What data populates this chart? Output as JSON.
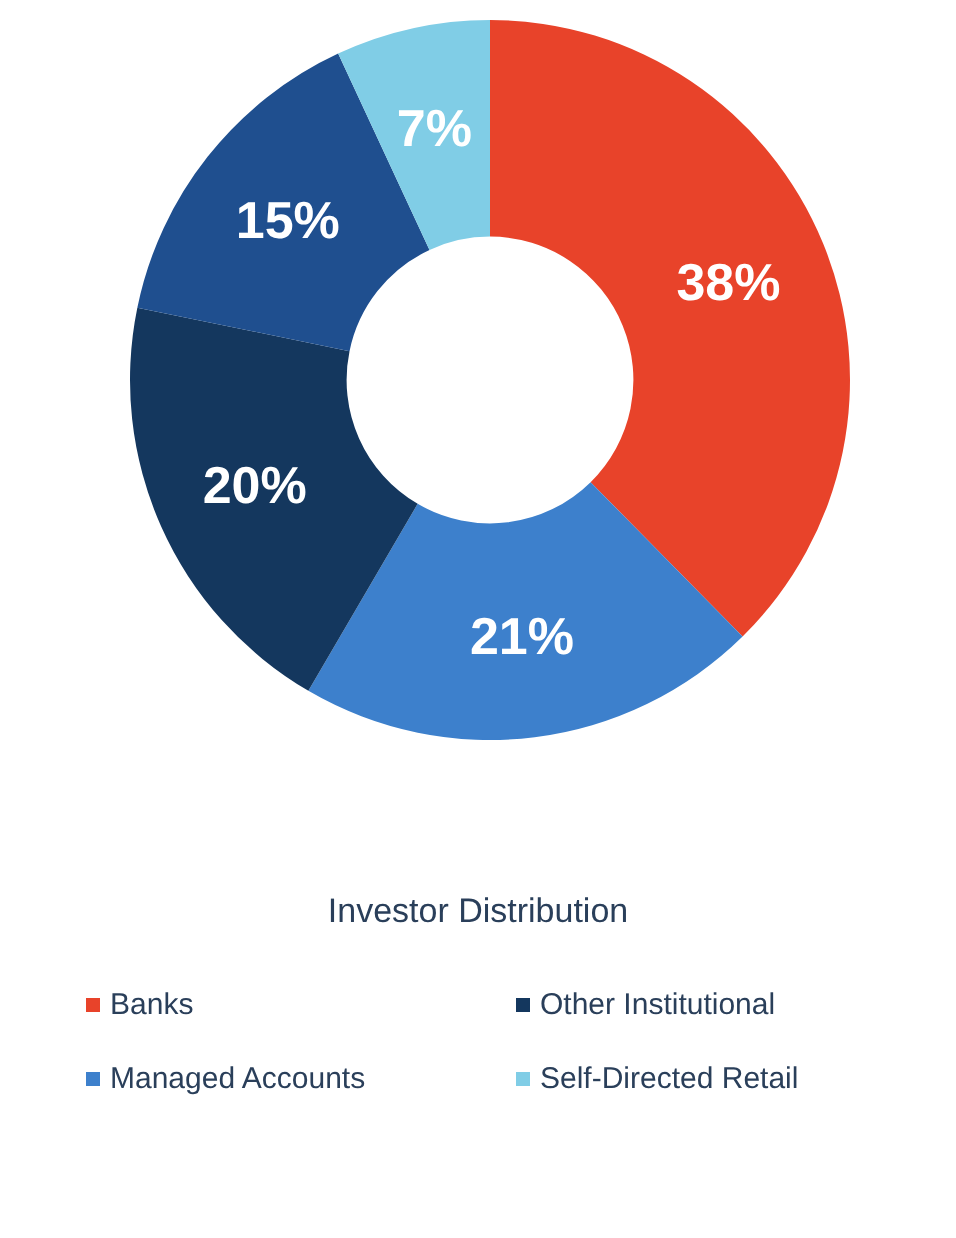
{
  "chart_data": {
    "type": "donut",
    "title": "Investor Distribution",
    "categories": [
      "Banks",
      "Managed Accounts",
      "Other Institutional",
      null,
      "Self-Directed Retail"
    ],
    "values": [
      38,
      21,
      20,
      15,
      7
    ],
    "value_labels": [
      "38%",
      "21%",
      "20%",
      "15%",
      "7%"
    ],
    "colors": [
      "#e8432a",
      "#3d80cc",
      "#14375e",
      "#1f4f8f",
      "#80cde6"
    ],
    "legend": "bottom"
  }
}
